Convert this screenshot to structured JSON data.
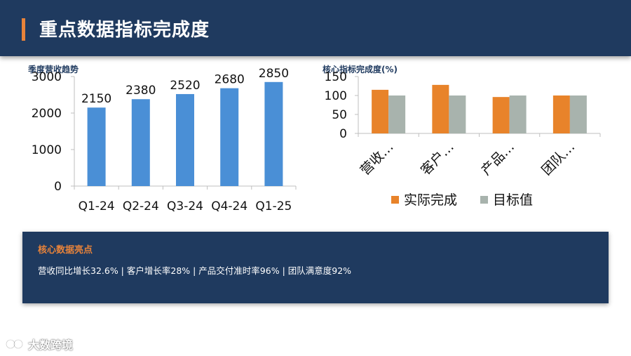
{
  "header": {
    "title": "重点数据指标完成度"
  },
  "colors": {
    "header_bg": "#1f3a5f",
    "accent": "#e8833a",
    "bar_blue": "#4a8fd6",
    "actual_orange": "#e8832a",
    "target_gray": "#a8b3ad"
  },
  "chart_data": [
    {
      "type": "bar",
      "title": "季度营收趋势",
      "categories": [
        "Q1-24",
        "Q2-24",
        "Q3-24",
        "Q4-24",
        "Q1-25"
      ],
      "values": [
        2150,
        2380,
        2520,
        2680,
        2850
      ],
      "data_labels": [
        "2150",
        "2380",
        "2520",
        "2680",
        "2850"
      ],
      "ylim": [
        0,
        3000
      ],
      "yticks": [
        0,
        1000,
        2000,
        3000
      ],
      "ytick_labels": [
        "0",
        "1000",
        "2000",
        "3000"
      ],
      "grid": false,
      "legend": "none"
    },
    {
      "type": "bar",
      "title": "核心指标完成度(%)",
      "categories": [
        "营收…",
        "客户…",
        "产品…",
        "团队…"
      ],
      "series": [
        {
          "name": "实际完成",
          "values": [
            115,
            128,
            96,
            100
          ]
        },
        {
          "name": "目标值",
          "values": [
            100,
            100,
            100,
            100
          ]
        }
      ],
      "ylim": [
        0,
        150
      ],
      "yticks": [
        0,
        50,
        100,
        150
      ],
      "ytick_labels": [
        "0",
        "50",
        "100",
        "150"
      ],
      "grid": false,
      "legend": "bottom"
    }
  ],
  "highlights": {
    "title": "核心数据亮点",
    "text": "营收同比增长32.6%  |  客户增长率28%  |  产品交付准时率96%  |  团队满意度92%"
  },
  "footer": {
    "logo_text": "大数跨境"
  }
}
